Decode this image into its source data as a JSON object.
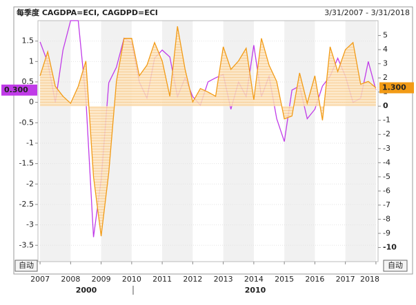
{
  "header": {
    "title": "每季度 CAGDPA=ECI, CAGDPD=ECI",
    "date_range": "3/31/2007 - 3/31/2018"
  },
  "chart_data": {
    "type": "line",
    "x": [
      2007,
      2007.25,
      2007.5,
      2007.75,
      2008,
      2008.25,
      2008.5,
      2008.75,
      2009,
      2009.25,
      2009.5,
      2009.75,
      2010,
      2010.25,
      2010.5,
      2010.75,
      2011,
      2011.25,
      2011.5,
      2011.75,
      2012,
      2012.25,
      2012.5,
      2012.75,
      2013,
      2013.25,
      2013.5,
      2013.75,
      2014,
      2014.25,
      2014.5,
      2014.75,
      2015,
      2015.25,
      2015.5,
      2015.75,
      2016,
      2016.25,
      2016.5,
      2016.75,
      2017,
      2017.25,
      2017.5,
      2017.75,
      2018
    ],
    "xlim": [
      2006.93,
      2018.07
    ],
    "xticks": [
      2007,
      2008,
      2009,
      2010,
      2011,
      2012,
      2013,
      2014,
      2015,
      2016,
      2017,
      2018
    ],
    "decade_labels": [
      "2000",
      "2010"
    ],
    "ylim": [
      -3.9,
      2.0
    ],
    "yticks": [
      1.5,
      1,
      0.5,
      0,
      -0.5,
      -1,
      -1.5,
      -2,
      -2.5,
      -3,
      -3.5
    ],
    "y2lim": [
      -11,
      6.05
    ],
    "y2ticks": [
      5,
      4,
      3,
      2,
      1,
      0,
      -1,
      -2,
      -3,
      -4,
      -5,
      -6,
      -7,
      -8,
      -9,
      -10
    ],
    "grid": true,
    "series": [
      {
        "color": "#c03be8",
        "last_value_label": "0.300",
        "values": [
          1.48,
          0.98,
          0.0,
          1.28,
          2.0,
          2.0,
          0.1,
          -3.3,
          -1.9,
          0.48,
          0.86,
          1.57,
          1.45,
          0.5,
          0.1,
          1.08,
          1.28,
          1.11,
          0.14,
          0.6,
          0.14,
          -0.07,
          0.5,
          0.6,
          0.68,
          -0.17,
          0.5,
          0.14,
          1.4,
          0.14,
          0.64,
          -0.4,
          -0.96,
          0.3,
          0.4,
          -0.4,
          -0.17,
          0.4,
          0.64,
          1.08,
          0.64,
          0.0,
          0.1,
          1.0,
          0.3
        ]
      },
      {
        "color": "#f29b16",
        "axis": "y2",
        "fill": true,
        "last_value_label": "1.300",
        "values": [
          2.15,
          3.85,
          1.4,
          0.7,
          0.2,
          1.4,
          3.2,
          -5.0,
          -9.2,
          -4.7,
          1.75,
          4.8,
          4.8,
          2.15,
          2.9,
          4.5,
          3.2,
          0.7,
          5.65,
          2.6,
          0.3,
          1.25,
          1.0,
          0.7,
          4.2,
          2.6,
          3.2,
          4.1,
          0.45,
          4.8,
          2.9,
          1.75,
          -0.9,
          -0.7,
          2.35,
          0.2,
          2.15,
          -1.0,
          4.2,
          2.45,
          4.0,
          4.5,
          1.55,
          1.75,
          1.3
        ]
      }
    ]
  },
  "controls": {
    "left_scale": "自动",
    "right_scale": "自动"
  }
}
